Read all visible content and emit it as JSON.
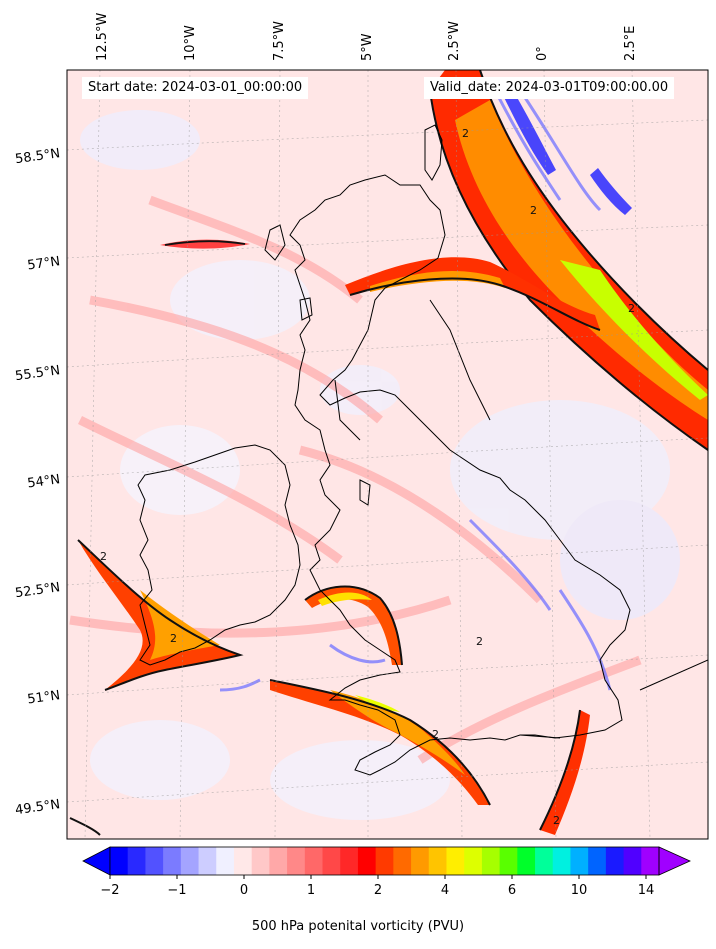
{
  "map": {
    "start_label": "Start date: 2024-03-01_00:00:00",
    "valid_label": "Valid_date: 2024-03-01T09:00:00.00",
    "longitude_labels": [
      "12.5°W",
      "10°W",
      "7.5°W",
      "5°W",
      "2.5°W",
      "0°",
      "2.5°E"
    ],
    "latitude_labels": [
      "58.5°N",
      "57°N",
      "55.5°N",
      "54°N",
      "52.5°N",
      "51°N",
      "49.5°N"
    ],
    "contour_labels": [
      "2",
      "2",
      "2",
      "2",
      "2",
      "2",
      "2",
      "2"
    ],
    "projection_note": ""
  },
  "colorbar": {
    "title": "500 hPa potenital vorticity (PVU)",
    "tick_labels": [
      "−2",
      "−1",
      "0",
      "1",
      "2",
      "4",
      "6",
      "10",
      "14"
    ],
    "colors": [
      "#0000ff",
      "#2929ff",
      "#5252ff",
      "#7b7bff",
      "#a4a4ff",
      "#cdcdff",
      "#f0f0ff",
      "#ffe8e8",
      "#ffc8c8",
      "#ffa8a8",
      "#ff8888",
      "#ff6868",
      "#ff4848",
      "#ff2828",
      "#ff0000",
      "#ff3a00",
      "#ff6a00",
      "#ff9a00",
      "#ffc400",
      "#ffee00",
      "#ddff00",
      "#a6ff00",
      "#59ff00",
      "#00ff2a",
      "#00ff9a",
      "#00f0e0",
      "#00b0ff",
      "#0064ff",
      "#1a1aff",
      "#5000ff",
      "#a000ff"
    ]
  }
}
